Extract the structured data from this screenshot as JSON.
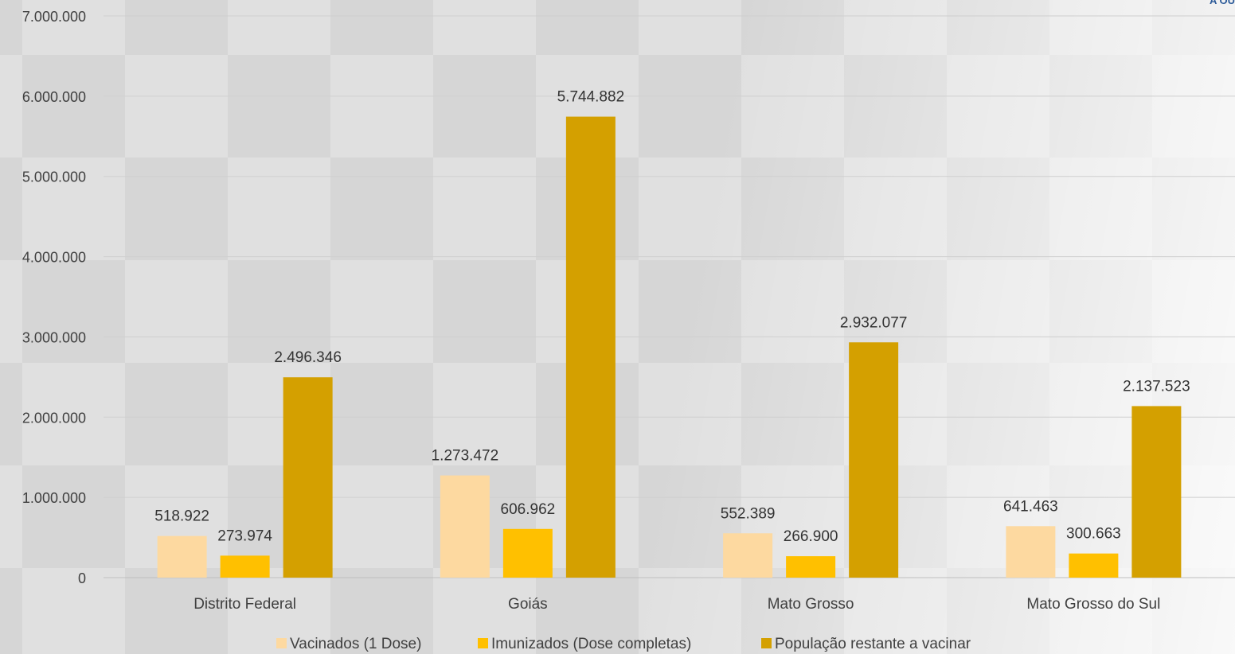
{
  "corner_text": "A OU",
  "chart_data": {
    "type": "bar",
    "categories": [
      "Distrito Federal",
      "Goiás",
      "Mato Grosso",
      "Mato Grosso do Sul"
    ],
    "series": [
      {
        "name": "Vacinados (1 Dose)",
        "color": "#fdd9a0",
        "values": [
          518922,
          1273472,
          552389,
          641463
        ],
        "labels": [
          "518.922",
          "1.273.472",
          "552.389",
          "641.463"
        ]
      },
      {
        "name": "Imunizados (Dose completas)",
        "color": "#ffc000",
        "values": [
          273974,
          606962,
          266900,
          300663
        ],
        "labels": [
          "273.974",
          "606.962",
          "266.900",
          "300.663"
        ]
      },
      {
        "name": "População restante a vacinar",
        "color": "#d4a000",
        "values": [
          2496346,
          5744882,
          2932077,
          2137523
        ],
        "labels": [
          "2.496.346",
          "5.744.882",
          "2.932.077",
          "2.137.523"
        ]
      }
    ],
    "ylim": [
      0,
      7000000
    ],
    "y_ticks": [
      {
        "value": 0,
        "label": "0"
      },
      {
        "value": 1000000,
        "label": "1.000.000"
      },
      {
        "value": 2000000,
        "label": "2.000.000"
      },
      {
        "value": 3000000,
        "label": "3.000.000"
      },
      {
        "value": 4000000,
        "label": "4.000.000"
      },
      {
        "value": 5000000,
        "label": "5.000.000"
      },
      {
        "value": 6000000,
        "label": "6.000.000"
      },
      {
        "value": 7000000,
        "label": "7.000.000"
      }
    ],
    "grid": true,
    "legend_position": "bottom",
    "title": "",
    "xlabel": "",
    "ylabel": ""
  }
}
